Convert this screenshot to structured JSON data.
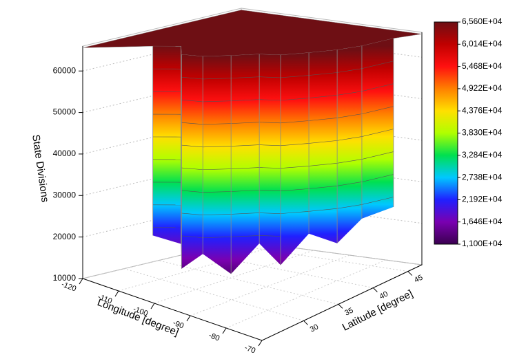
{
  "chart_data": {
    "type": "surface3d",
    "xlabel": "Longitude [degree]",
    "ylabel": "Latitude [degree]",
    "zlabel": "State Divisions",
    "xlim": [
      -120,
      -70
    ],
    "xticks": [
      -120,
      -110,
      -100,
      -90,
      -80,
      -70
    ],
    "ylim": [
      24,
      47
    ],
    "yticks": [
      30,
      35,
      40,
      45
    ],
    "zlim": [
      10000,
      66000
    ],
    "zticks": [
      10000,
      20000,
      30000,
      40000,
      50000,
      60000
    ],
    "grid": true,
    "wall": {
      "lon": [
        -112,
        -108,
        -104,
        -100,
        -96,
        -92,
        -88,
        -84,
        -80,
        -77,
        -74
      ],
      "lat": [
        30,
        32,
        30,
        31,
        33,
        35,
        36,
        38,
        40,
        42,
        45
      ],
      "zmin": [
        20000,
        18000,
        14000,
        18000,
        13000,
        20000,
        15000,
        22000,
        19000,
        24000,
        25000
      ],
      "zmax": [
        65600,
        65600,
        65600,
        65600,
        65600,
        65600,
        65600,
        65600,
        65600,
        65600,
        65600
      ]
    },
    "colorbar": {
      "colors": [
        "#3a0050",
        "#7a00b0",
        "#2020ff",
        "#00c8ff",
        "#00e050",
        "#b0ff00",
        "#ffe000",
        "#ff8000",
        "#ff1010",
        "#c00000",
        "#6e0f14"
      ],
      "ticks": [
        {
          "value": 65600,
          "label": "6,560E+04"
        },
        {
          "value": 60140,
          "label": "6,014E+04"
        },
        {
          "value": 54680,
          "label": "5,468E+04"
        },
        {
          "value": 49220,
          "label": "4,922E+04"
        },
        {
          "value": 43760,
          "label": "4,376E+04"
        },
        {
          "value": 38300,
          "label": "3,830E+04"
        },
        {
          "value": 32840,
          "label": "3,284E+04"
        },
        {
          "value": 27380,
          "label": "2,738E+04"
        },
        {
          "value": 21920,
          "label": "2,192E+04"
        },
        {
          "value": 16460,
          "label": "1,646E+04"
        },
        {
          "value": 11000,
          "label": "1,100E+04"
        }
      ]
    }
  }
}
